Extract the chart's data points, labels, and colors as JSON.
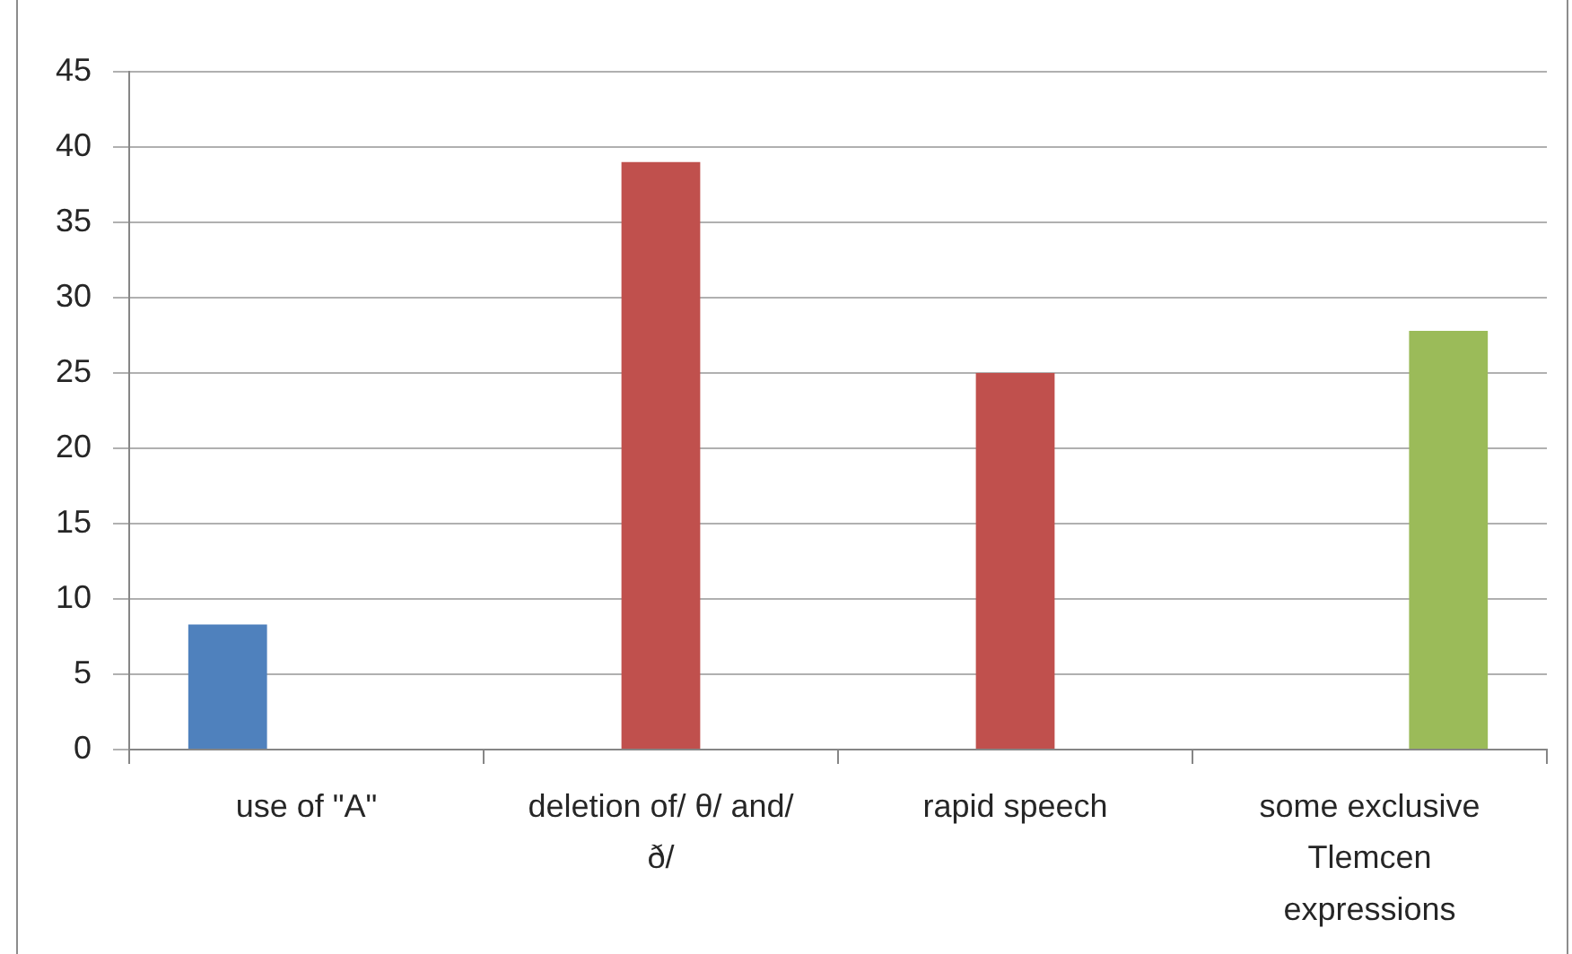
{
  "chart_data": {
    "type": "bar",
    "categories": [
      "use of \"A\"",
      "deletion of/ θ/ and/ ð/",
      "rapid speech",
      "some exclusive Tlemcen expressions"
    ],
    "series": [
      {
        "color": "#4f81bd",
        "values": [
          8.3,
          null,
          null,
          null
        ]
      },
      {
        "color": "#c0504d",
        "values": [
          null,
          39,
          25,
          null
        ]
      },
      {
        "color": "#9bbb59",
        "values": [
          null,
          null,
          null,
          27.8
        ]
      }
    ],
    "ylim": [
      0,
      45
    ],
    "yticks": [
      0,
      5,
      10,
      15,
      20,
      25,
      30,
      35,
      40,
      45
    ],
    "grid": "y"
  }
}
